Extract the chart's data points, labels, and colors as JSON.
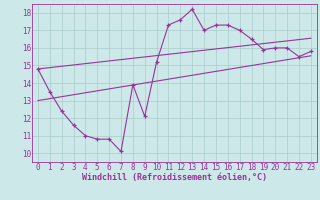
{
  "xlabel": "Windchill (Refroidissement éolien,°C)",
  "bg_color": "#cce8e8",
  "grid_color": "#aacccc",
  "line_color": "#993399",
  "xlim": [
    -0.5,
    23.5
  ],
  "ylim": [
    9.5,
    18.5
  ],
  "xticks": [
    0,
    1,
    2,
    3,
    4,
    5,
    6,
    7,
    8,
    9,
    10,
    11,
    12,
    13,
    14,
    15,
    16,
    17,
    18,
    19,
    20,
    21,
    22,
    23
  ],
  "yticks": [
    10,
    11,
    12,
    13,
    14,
    15,
    16,
    17,
    18
  ],
  "hours": [
    0,
    1,
    2,
    3,
    4,
    5,
    6,
    7,
    8,
    9,
    10,
    11,
    12,
    13,
    14,
    15,
    16,
    17,
    18,
    19,
    20,
    21,
    22,
    23
  ],
  "temp_line1": [
    14.8,
    13.5,
    12.4,
    11.6,
    11.0,
    10.8,
    10.8,
    10.1,
    13.9,
    12.1,
    15.2,
    17.3,
    17.6,
    18.2,
    17.0,
    17.3,
    17.3,
    17.0,
    16.5,
    15.9,
    16.0,
    16.0,
    15.5,
    15.8
  ],
  "temp_line2_x": [
    0,
    23
  ],
  "temp_line2_y": [
    14.8,
    16.55
  ],
  "temp_line3_x": [
    0,
    23
  ],
  "temp_line3_y": [
    13.0,
    15.55
  ],
  "tick_fontsize": 5.5,
  "xlabel_fontsize": 6.0
}
